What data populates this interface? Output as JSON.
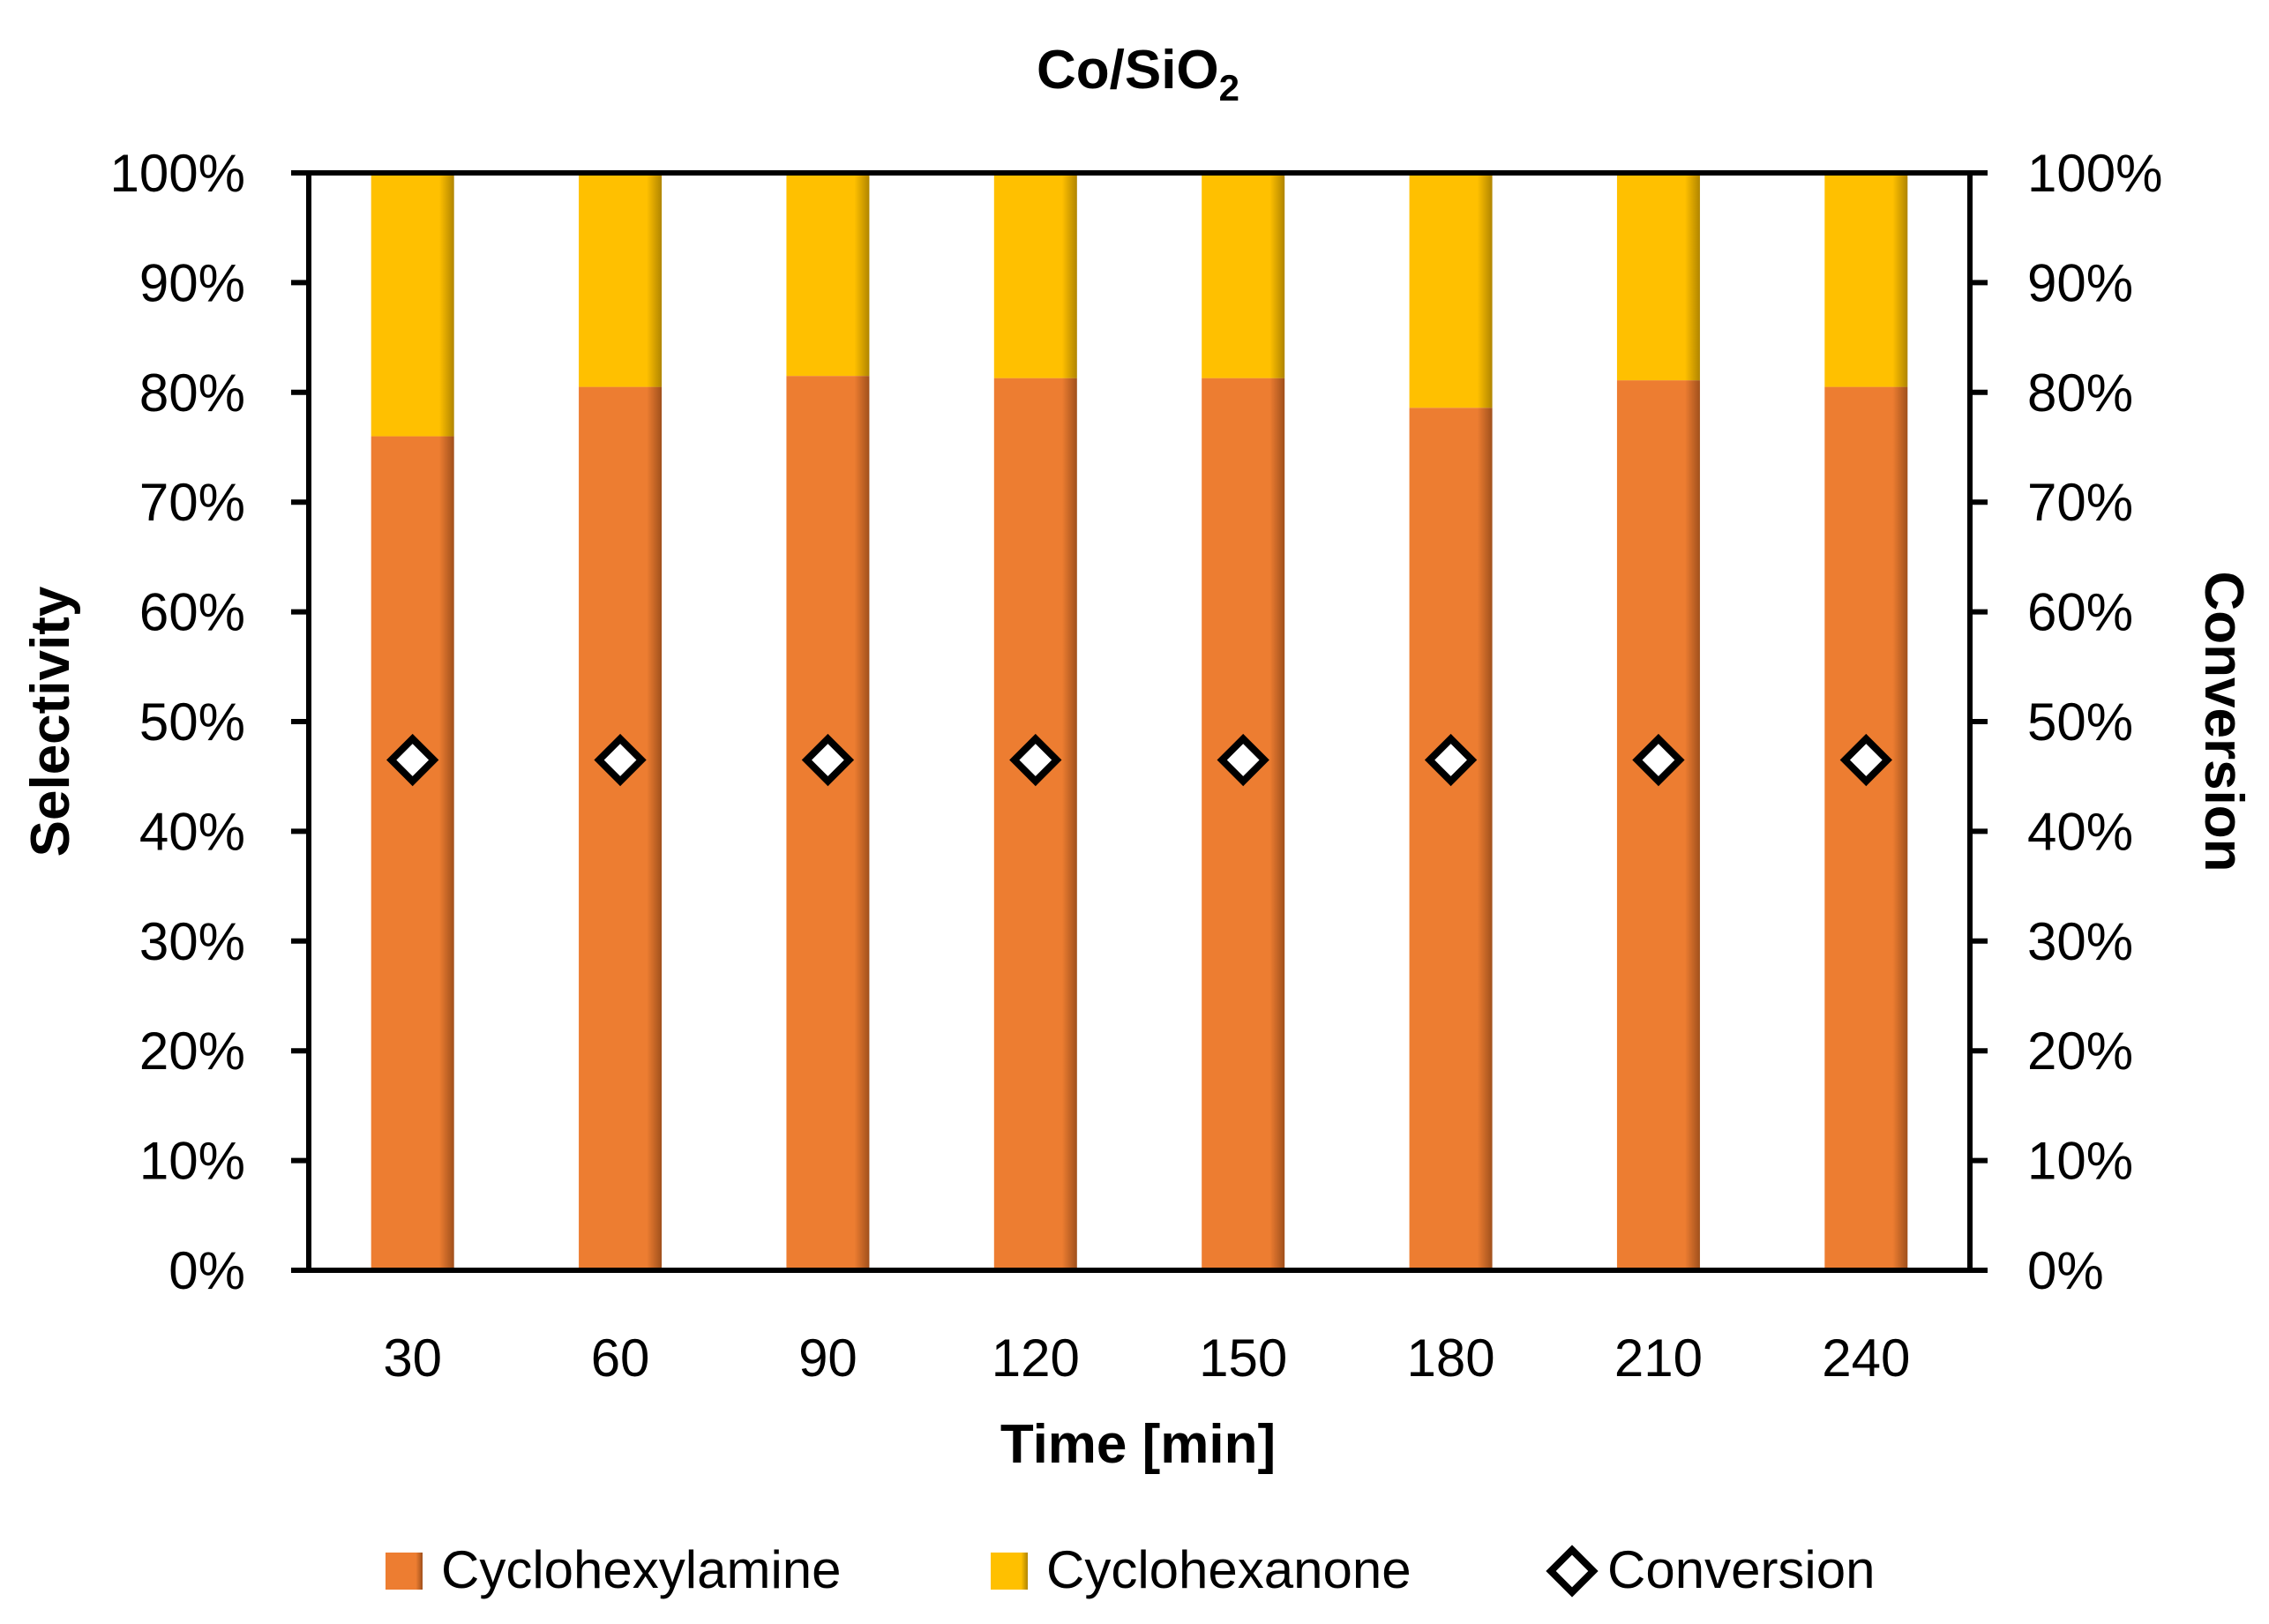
{
  "chart_data": {
    "type": "bar",
    "stacked": true,
    "title_main": "Co/SiO",
    "title_sub": "2",
    "xlabel": "Time [min]",
    "ylabel_left": "Selectivity",
    "ylabel_right": "Conversion",
    "categories": [
      "30",
      "60",
      "90",
      "120",
      "150",
      "180",
      "210",
      "240"
    ],
    "ylim": [
      0,
      100
    ],
    "y_ticks": [
      0,
      10,
      20,
      30,
      40,
      50,
      60,
      70,
      80,
      90,
      100
    ],
    "y_tick_suffix": "%",
    "series": [
      {
        "name": "Cyclohexylamine",
        "kind": "bar",
        "color": "#ED7D31",
        "values": [
          76,
          80.5,
          81.5,
          81.3,
          81.3,
          78.6,
          81.1,
          80.5
        ]
      },
      {
        "name": "Cyclohexanone",
        "kind": "bar",
        "color": "#FFC000",
        "values": [
          24,
          19.5,
          18.5,
          18.7,
          18.7,
          21.4,
          18.9,
          19.5
        ]
      },
      {
        "name": "Conversion",
        "kind": "marker",
        "marker": "diamond",
        "color": "#000000",
        "values": [
          46.5,
          46.5,
          46.5,
          46.5,
          46.5,
          46.5,
          46.5,
          46.5
        ]
      }
    ],
    "legend": {
      "position": "bottom",
      "items": [
        {
          "label": "Cyclohexylamine",
          "icon": "orange-square-icon"
        },
        {
          "label": "Cyclohexanone",
          "icon": "yellow-square-icon"
        },
        {
          "label": "Conversion",
          "icon": "diamond-icon"
        }
      ]
    },
    "grid": false
  }
}
